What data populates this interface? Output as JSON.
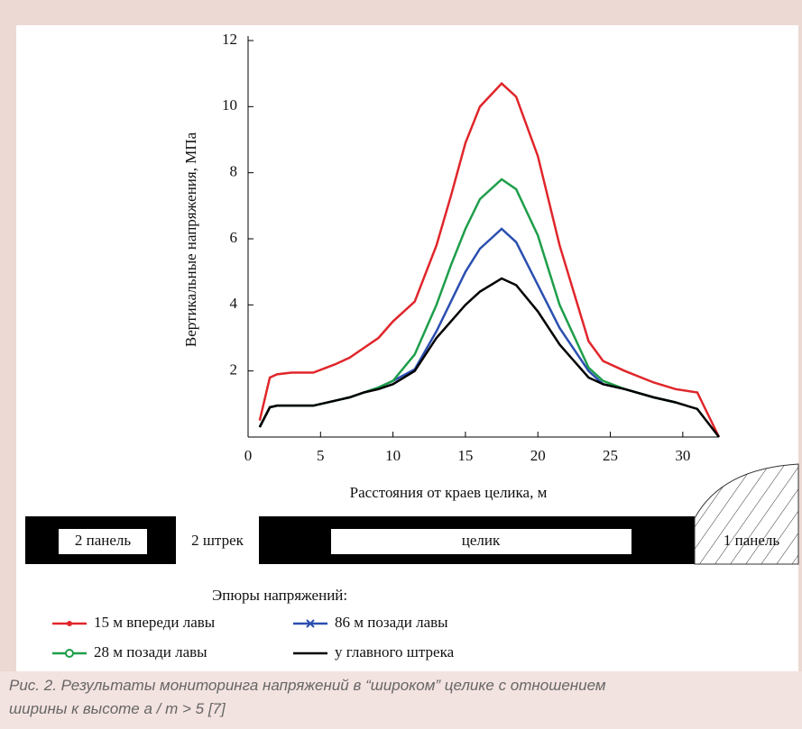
{
  "chart_data": {
    "type": "line",
    "xlabel": "Расстояния от краев целика, м",
    "ylabel": "Вертикальные напряжения,  МПа",
    "x": [
      0.8,
      1.5,
      2,
      3,
      4.5,
      6,
      7,
      8,
      9,
      10,
      11.5,
      13,
      14,
      15,
      16,
      17.5,
      18.5,
      20,
      21.5,
      23.5,
      24.5,
      26,
      28,
      29.5,
      31,
      32.5
    ],
    "series": [
      {
        "name": "15 м впереди лавы",
        "color": "#e0262b",
        "marker": "dot",
        "values": [
          0.5,
          1.8,
          1.9,
          1.95,
          1.95,
          2.2,
          2.4,
          2.7,
          3.0,
          3.5,
          4.1,
          5.8,
          7.3,
          8.9,
          10.0,
          10.7,
          10.3,
          8.5,
          5.8,
          2.9,
          2.3,
          2.0,
          1.65,
          1.45,
          1.35,
          0
        ]
      },
      {
        "name": "86 м позади лавы",
        "color": "#2b4fb0",
        "marker": "x",
        "values": [
          0.3,
          0.9,
          0.95,
          0.95,
          0.95,
          1.1,
          1.2,
          1.35,
          1.5,
          1.7,
          2.05,
          3.2,
          4.1,
          5.0,
          5.7,
          6.3,
          5.9,
          4.6,
          3.3,
          2.0,
          1.6,
          1.45,
          1.2,
          1.05,
          null,
          null
        ]
      },
      {
        "name": "28 м позади лавы",
        "color": "#1e9e4a",
        "marker": "circle",
        "values": [
          0.3,
          0.9,
          0.95,
          0.95,
          0.95,
          1.1,
          1.2,
          1.35,
          1.5,
          1.7,
          2.5,
          4.0,
          5.2,
          6.3,
          7.2,
          7.8,
          7.5,
          6.1,
          4.0,
          2.1,
          1.7,
          1.45,
          1.2,
          1.05,
          null,
          null
        ]
      },
      {
        "name": "у главного штрека",
        "color": "#000000",
        "marker": "none",
        "values": [
          0.3,
          0.9,
          0.95,
          0.95,
          0.95,
          1.1,
          1.2,
          1.35,
          1.45,
          1.6,
          2.0,
          3.0,
          3.5,
          4.0,
          4.4,
          4.8,
          4.6,
          3.8,
          2.8,
          1.8,
          1.6,
          1.45,
          1.2,
          1.05,
          0.85,
          0
        ]
      }
    ],
    "xlim": [
      0,
      32.5
    ],
    "ylim": [
      0,
      12
    ],
    "xticks": [
      0,
      5,
      10,
      15,
      20,
      25,
      30
    ],
    "yticks": [
      2,
      4,
      6,
      8,
      10,
      12
    ],
    "legend_title": "Эпюры напряжений:"
  },
  "diagram": {
    "labels": [
      "2 панель",
      "2 штрек",
      "целик",
      "1 панель"
    ]
  },
  "caption": {
    "lines": [
      "Рис. 2. Результаты мониторинга напряжений в “широком” целике с отношением",
      "ширины к высоте a / m > 5 [7]"
    ]
  }
}
